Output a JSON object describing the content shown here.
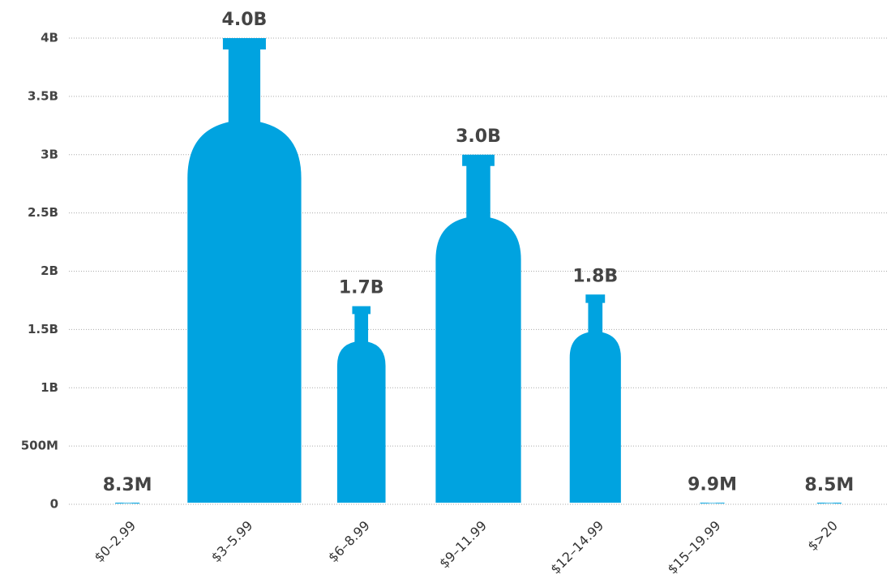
{
  "chart_data": {
    "type": "bottle-bar",
    "categories": [
      "$0–2.99",
      "$3–5.99",
      "$6–8.99",
      "$9–11.99",
      "$12–14.99",
      "$15–19.99",
      "$>20"
    ],
    "values": [
      8300000,
      4000000000,
      1700000000,
      3000000000,
      1800000000,
      9900000,
      8500000
    ],
    "value_labels": [
      "8.3M",
      "4.0B",
      "1.7B",
      "3.0B",
      "1.8B",
      "9.9M",
      "8.5M"
    ],
    "color": "#00a3e0",
    "ylim": [
      0,
      4000000000
    ],
    "yticks": [
      0,
      {
        "value": 500000000,
        "label": "500M"
      },
      {
        "value": 1000000000,
        "label": "1B"
      },
      {
        "value": 1500000000,
        "label": "1.5B"
      },
      {
        "value": 2000000000,
        "label": "2B"
      },
      {
        "value": 2500000000,
        "label": "2.5B"
      },
      {
        "value": 3000000000,
        "label": "3B"
      },
      {
        "value": 3500000000,
        "label": "3.5B"
      },
      {
        "value": 4000000000,
        "label": "4B"
      }
    ],
    "grid": true
  }
}
